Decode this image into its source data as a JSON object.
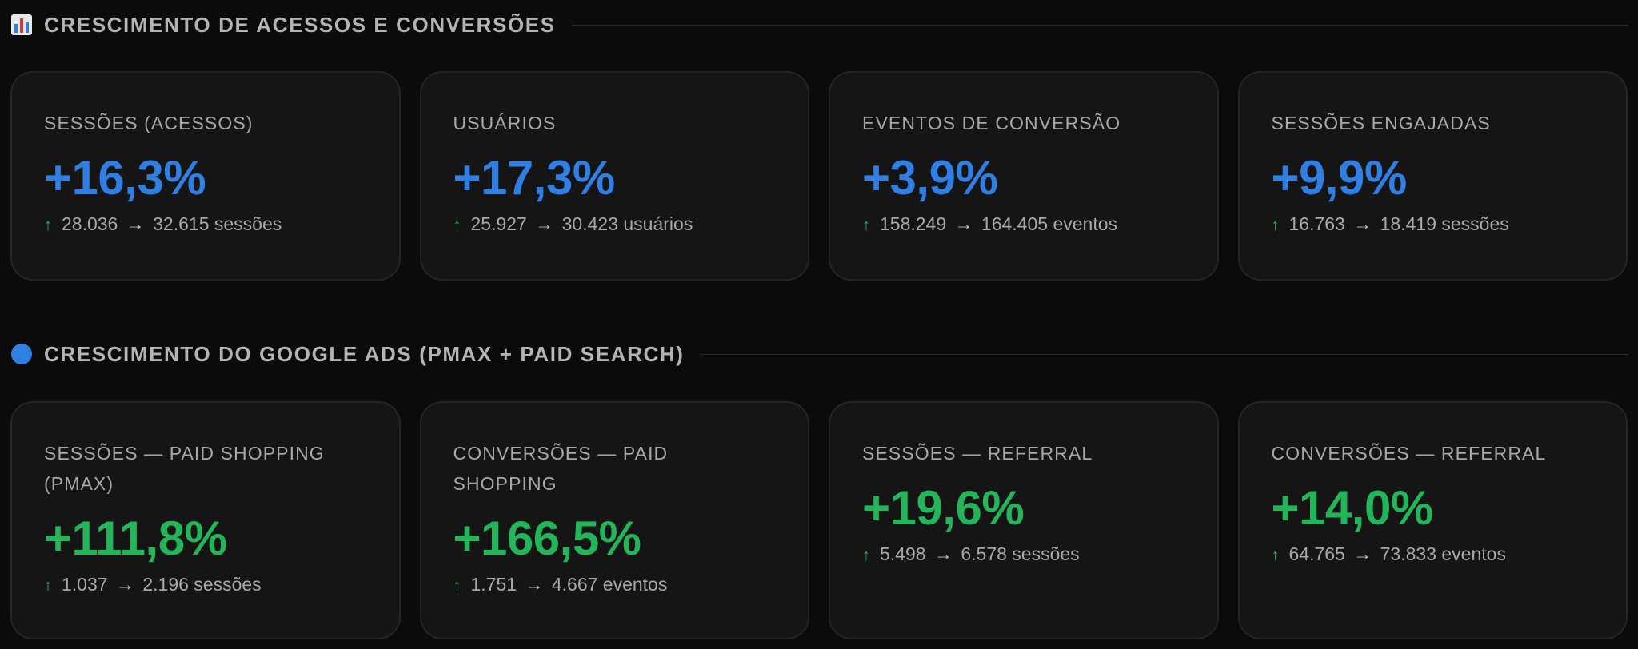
{
  "sections": [
    {
      "icon": "bar-chart-icon",
      "title": "CRESCIMENTO DE ACESSOS E CONVERSÕES",
      "accent": "#2f7fe4",
      "cards": [
        {
          "label": "SESSÕES (ACESSOS)",
          "value": "+16,3%",
          "from": "28.036",
          "to": "32.615",
          "unit": "sessões"
        },
        {
          "label": "USUÁRIOS",
          "value": "+17,3%",
          "from": "25.927",
          "to": "30.423",
          "unit": "usuários"
        },
        {
          "label": "EVENTOS DE CONVERSÃO",
          "value": "+3,9%",
          "from": "158.249",
          "to": "164.405",
          "unit": "eventos"
        },
        {
          "label": "SESSÕES ENGAJADAS",
          "value": "+9,9%",
          "from": "16.763",
          "to": "18.419",
          "unit": "sessões"
        }
      ]
    },
    {
      "icon": "blue-circle-icon",
      "title": "CRESCIMENTO DO GOOGLE ADS (PMAX + PAID SEARCH)",
      "accent": "#22b55a",
      "cards": [
        {
          "label": "SESSÕES — PAID SHOPPING (PMAX)",
          "value": "+111,8%",
          "from": "1.037",
          "to": "2.196",
          "unit": "sessões"
        },
        {
          "label": "CONVERSÕES — PAID SHOPPING",
          "value": "+166,5%",
          "from": "1.751",
          "to": "4.667",
          "unit": "eventos"
        },
        {
          "label": "SESSÕES — REFERRAL",
          "value": "+19,6%",
          "from": "5.498",
          "to": "6.578",
          "unit": "sessões"
        },
        {
          "label": "CONVERSÕES — REFERRAL",
          "value": "+14,0%",
          "from": "64.765",
          "to": "73.833",
          "unit": "eventos"
        }
      ]
    }
  ],
  "symbols": {
    "up": "↑",
    "arrow": "→"
  },
  "colors": {
    "background": "#0b0b0b",
    "card": "#151515",
    "blue": "#2f7fe4",
    "green": "#22b55a"
  }
}
